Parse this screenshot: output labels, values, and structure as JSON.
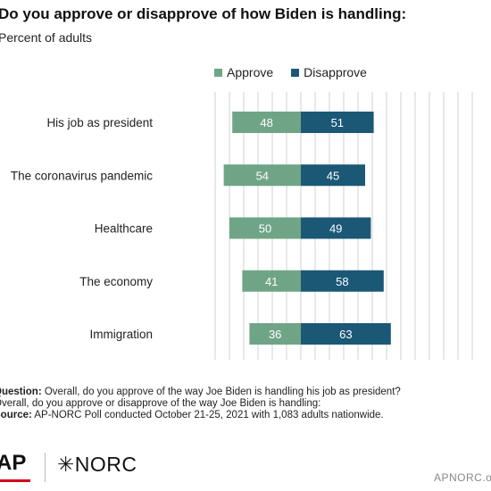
{
  "title": "Do you approve or disapprove of how Biden is handling:",
  "subtitle": "Percent of adults",
  "colors": {
    "approve": "#6fa586",
    "disapprove": "#1b5876",
    "grid": "#d0d0d0"
  },
  "chart_data": {
    "type": "bar",
    "orientation": "horizontal-diverging",
    "categories": [
      "His job as president",
      "The coronavirus pandemic",
      "Healthcare",
      "The economy",
      "Immigration"
    ],
    "series": [
      {
        "name": "Approve",
        "values": [
          48,
          54,
          50,
          41,
          36
        ]
      },
      {
        "name": "Disapprove",
        "values": [
          51,
          45,
          49,
          58,
          63
        ]
      }
    ],
    "legend": "top",
    "grid": true
  },
  "notes": {
    "question_label": "Question:",
    "question_text": " Overall, do you approve of the way Joe Biden is handling his job as president?",
    "question_text2": "Overall, do you approve or disapprove of the way Joe Biden is handling:",
    "source_label": "Source:",
    "source_text": " AP-NORC Poll conducted October 21-25, 2021 with 1,083 adults nationwide."
  },
  "logos": {
    "ap": "AP",
    "norc": "✳NORC",
    "site": "APNORC.org"
  }
}
